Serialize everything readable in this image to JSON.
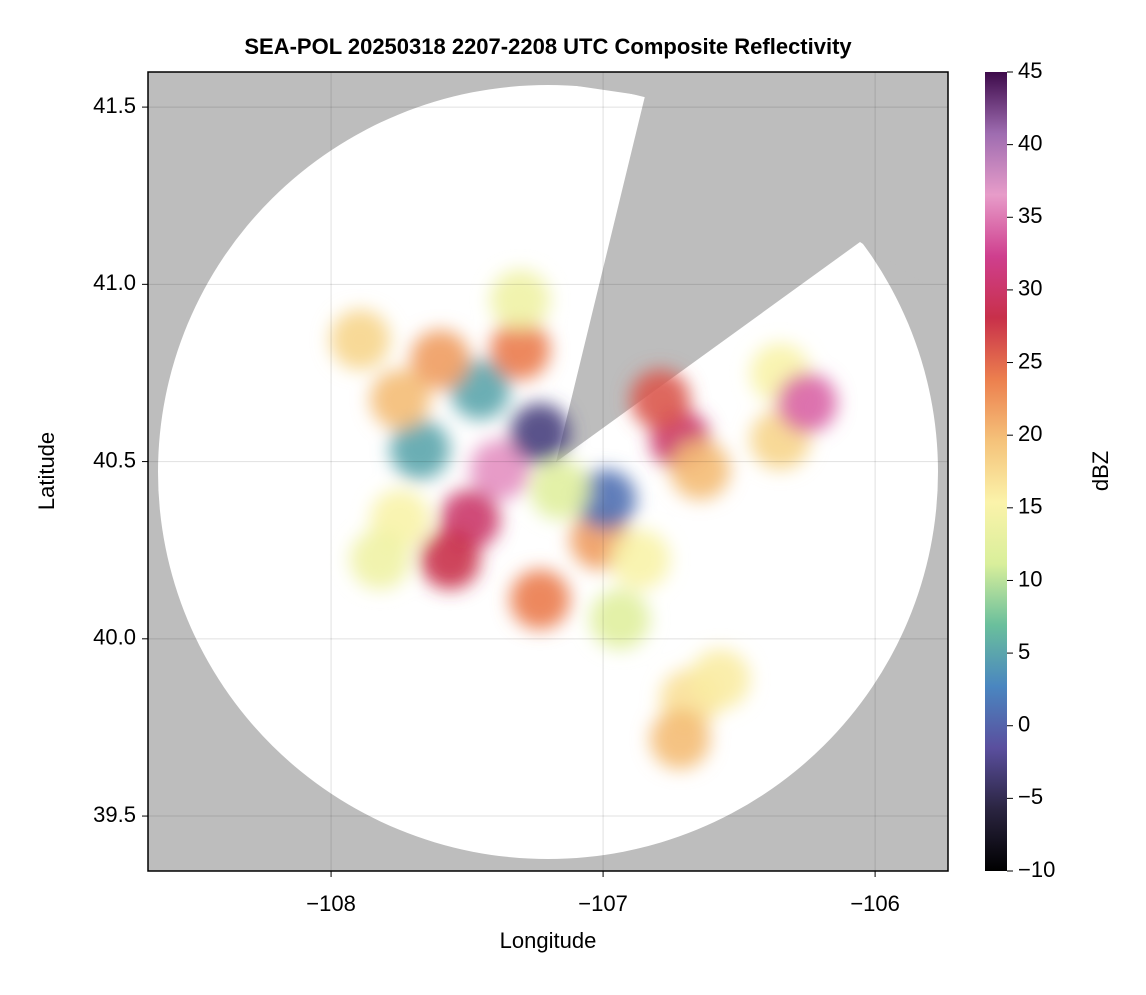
{
  "chart_data": {
    "type": "radar",
    "title": "SEA-POL 20250318 2207-2208 UTC Composite Reflectivity",
    "x_label": "Longitude",
    "y_label": "Latitude",
    "colorbar_label": "dBZ",
    "xlim": [
      -108.673,
      -105.732
    ],
    "ylim": [
      39.345,
      41.599
    ],
    "xticks": [
      {
        "value": -108,
        "label": "−108"
      },
      {
        "value": -107,
        "label": "−107"
      },
      {
        "value": -106,
        "label": "−106"
      }
    ],
    "yticks": [
      39.5,
      {
        "value": 40,
        "label": "40.0"
      },
      40.5,
      {
        "value": 41,
        "label": "41.0"
      },
      41.5
    ],
    "clim": [
      -10,
      45
    ],
    "cticks": [
      {
        "value": -10,
        "label": "−10"
      },
      {
        "value": -5,
        "label": "−5"
      },
      0,
      5,
      10,
      15,
      20,
      25,
      30,
      35,
      40,
      45
    ],
    "colormap": [
      "#000000",
      "#2a2440",
      "#5a4f9e",
      "#4a86c0",
      "#6abf9c",
      "#d9ef9b",
      "#fbf3aa",
      "#f5c27a",
      "#ec7f4e",
      "#c8304a",
      "#cf3f8e",
      "#e79cc9",
      "#9e6cb0",
      "#3d0a4a"
    ],
    "grid": true,
    "x": [
      -107.379,
      -107.489,
      -107.5625,
      -107.673,
      -107.452,
      -107.305,
      -107.599,
      -107.746,
      -107.746,
      -107.82,
      -107.232,
      -107.011,
      -106.989,
      -106.717,
      -106.79,
      -106.643,
      -106.864,
      -106.68,
      -106.57,
      -106.717,
      -106.349,
      -106.349,
      -106.25,
      -107.893,
      -107.232,
      -107.305,
      -107.158,
      -106.938
    ],
    "y": [
      40.477,
      40.337,
      40.224,
      40.534,
      40.703,
      40.815,
      40.787,
      40.675,
      40.337,
      40.224,
      40.111,
      40.28,
      40.393,
      40.562,
      40.675,
      40.477,
      40.224,
      39.83,
      39.886,
      39.717,
      40.749,
      40.562,
      40.666,
      40.844,
      40.58,
      40.956,
      40.421,
      40.055
    ],
    "values": [
      36,
      30,
      28,
      5,
      5,
      24,
      22,
      20,
      15,
      14,
      24,
      22,
      1,
      30,
      26,
      20,
      15,
      17,
      16,
      20,
      15,
      18,
      34,
      18,
      -3,
      14,
      12,
      12
    ]
  }
}
